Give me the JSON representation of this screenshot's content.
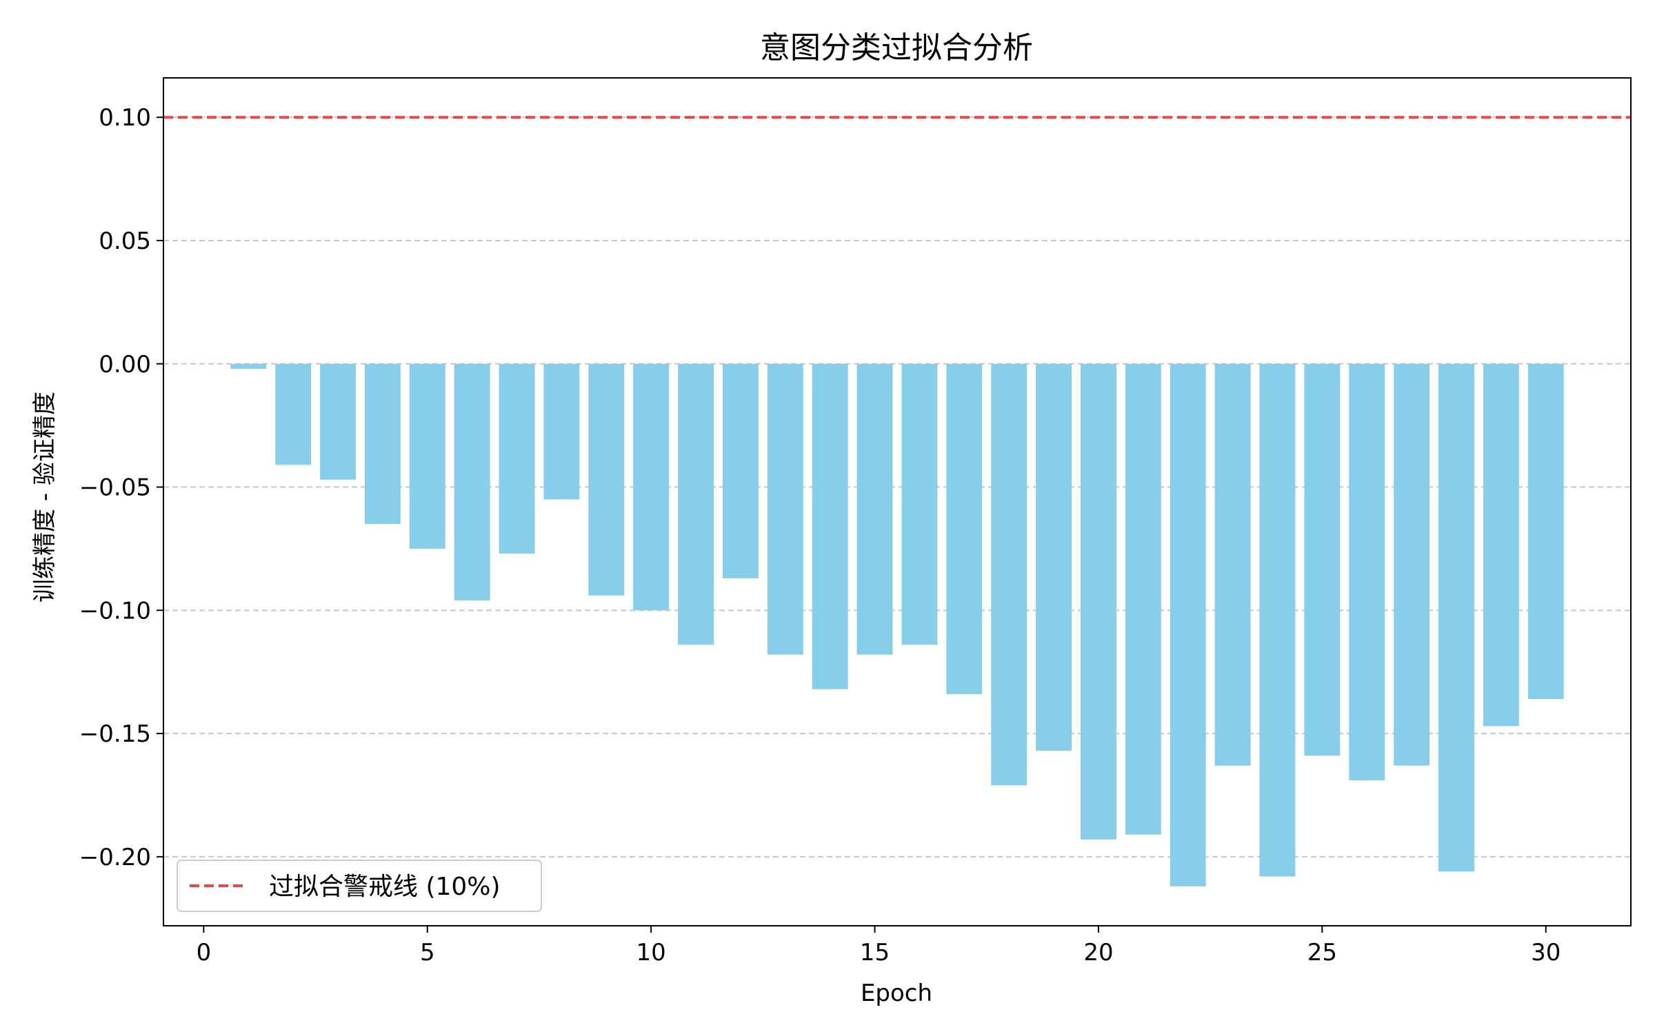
{
  "chart_data": {
    "type": "bar",
    "title": "意图分类过拟合分析",
    "xlabel": "Epoch",
    "ylabel": "训练精度 - 验证精度",
    "x": [
      1,
      2,
      3,
      4,
      5,
      6,
      7,
      8,
      9,
      10,
      11,
      12,
      13,
      14,
      15,
      16,
      17,
      18,
      19,
      20,
      21,
      22,
      23,
      24,
      25,
      26,
      27,
      28,
      29,
      30
    ],
    "values": [
      -0.002,
      -0.041,
      -0.047,
      -0.065,
      -0.075,
      -0.096,
      -0.077,
      -0.055,
      -0.094,
      -0.1,
      -0.114,
      -0.087,
      -0.118,
      -0.132,
      -0.118,
      -0.114,
      -0.134,
      -0.171,
      -0.157,
      -0.193,
      -0.191,
      -0.212,
      -0.163,
      -0.208,
      -0.159,
      -0.169,
      -0.163,
      -0.206,
      -0.147,
      -0.136
    ],
    "bar_color": "#87CEEB",
    "xlim": [
      -0.9,
      31.9
    ],
    "ylim": [
      -0.228,
      0.116
    ],
    "xticks": [
      0,
      5,
      10,
      15,
      20,
      25,
      30
    ],
    "xtick_labels": [
      "0",
      "5",
      "10",
      "15",
      "20",
      "25",
      "30"
    ],
    "yticks": [
      0.1,
      0.05,
      0.0,
      -0.05,
      -0.1,
      -0.15,
      -0.2
    ],
    "ytick_labels": [
      "0.10",
      "0.05",
      "0.00",
      "−0.05",
      "−0.10",
      "−0.15",
      "−0.20"
    ],
    "grid": "y-dashed",
    "threshold": {
      "value": 0.1,
      "label": "过拟合警戒线 (10%)",
      "color": "#EF4444",
      "style": "dashed"
    },
    "legend_position": "lower-left"
  }
}
